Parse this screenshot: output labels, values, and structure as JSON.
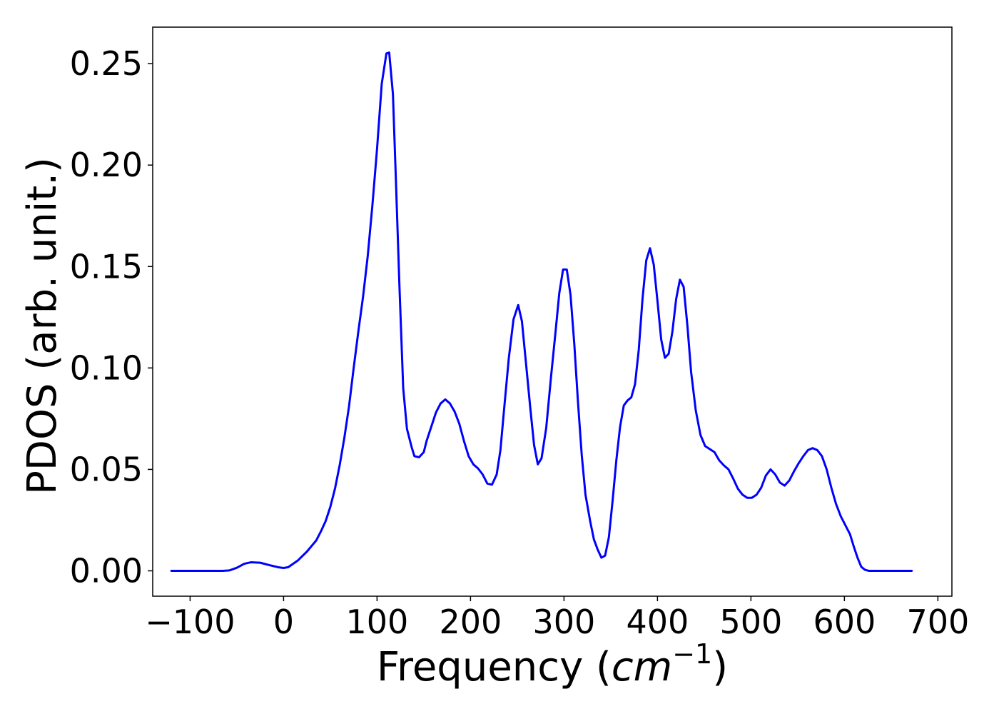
{
  "chart_data": {
    "type": "line",
    "title": "",
    "xlabel": "Frequency ($cm^{-1}$)",
    "xlabel_parts": {
      "main": "Frequency (",
      "math_base": "cm",
      "math_sup": "−1",
      "close": ")"
    },
    "ylabel": "PDOS (arb. unit.)",
    "xlim": [
      -140,
      715
    ],
    "ylim": [
      -0.0125,
      0.268
    ],
    "xticks": [
      -100,
      0,
      100,
      200,
      300,
      400,
      500,
      600,
      700
    ],
    "xtick_labels": [
      "−100",
      "0",
      "100",
      "200",
      "300",
      "400",
      "500",
      "600",
      "700"
    ],
    "yticks": [
      0.0,
      0.05,
      0.1,
      0.15,
      0.2,
      0.25
    ],
    "ytick_labels": [
      "0.00",
      "0.05",
      "0.10",
      "0.15",
      "0.20",
      "0.25"
    ],
    "grid": false,
    "colors": {
      "line": "#0000ff"
    },
    "series": [
      {
        "x": [
          -120,
          -100,
          -80,
          -65,
          -58,
          -50,
          -42,
          -35,
          -25,
          -15,
          -5,
          0,
          5,
          15,
          25,
          35,
          40,
          45,
          50,
          55,
          60,
          65,
          70,
          75,
          80,
          85,
          90,
          95,
          100,
          105,
          110,
          113,
          117,
          120,
          124,
          128,
          132,
          137,
          140,
          145,
          150,
          153,
          158,
          163,
          168,
          173,
          178,
          183,
          188,
          193,
          198,
          203,
          208,
          213,
          218,
          223,
          228,
          232,
          236,
          241,
          246,
          251,
          255,
          259,
          264,
          268,
          272,
          276,
          281,
          286,
          291,
          295,
          299,
          303,
          307,
          311,
          315,
          319,
          323,
          328,
          332,
          336,
          340,
          344,
          348,
          352,
          356,
          360,
          364,
          368,
          372,
          376,
          380,
          384,
          388,
          392,
          396,
          400,
          404,
          408,
          412,
          416,
          420,
          424,
          428,
          432,
          436,
          441,
          446,
          451,
          456,
          461,
          466,
          471,
          476,
          481,
          486,
          491,
          496,
          501,
          506,
          511,
          516,
          521,
          526,
          531,
          536,
          541,
          546,
          551,
          556,
          561,
          566,
          571,
          576,
          581,
          586,
          591,
          596,
          601,
          606,
          610,
          614,
          618,
          622,
          626,
          630,
          640,
          650,
          660,
          672
        ],
        "y": [
          0.0,
          0.0,
          0.0,
          0.0,
          0.0002,
          0.0015,
          0.0035,
          0.0042,
          0.004,
          0.0028,
          0.0017,
          0.0014,
          0.0018,
          0.005,
          0.0095,
          0.015,
          0.0195,
          0.0245,
          0.0315,
          0.0405,
          0.052,
          0.0655,
          0.081,
          0.1,
          0.118,
          0.135,
          0.155,
          0.18,
          0.208,
          0.24,
          0.255,
          0.2555,
          0.235,
          0.195,
          0.14,
          0.09,
          0.07,
          0.061,
          0.0565,
          0.056,
          0.0585,
          0.064,
          0.071,
          0.078,
          0.0825,
          0.0845,
          0.0825,
          0.0785,
          0.0725,
          0.064,
          0.0565,
          0.0525,
          0.0505,
          0.0475,
          0.043,
          0.0425,
          0.0475,
          0.0595,
          0.08,
          0.105,
          0.124,
          0.131,
          0.123,
          0.104,
          0.08,
          0.062,
          0.0525,
          0.0555,
          0.0705,
          0.095,
          0.118,
          0.137,
          0.1485,
          0.1485,
          0.136,
          0.112,
          0.083,
          0.057,
          0.0375,
          0.0245,
          0.0155,
          0.0105,
          0.0065,
          0.0075,
          0.0165,
          0.0345,
          0.0545,
          0.071,
          0.0815,
          0.084,
          0.0855,
          0.092,
          0.109,
          0.134,
          0.153,
          0.159,
          0.151,
          0.133,
          0.114,
          0.105,
          0.107,
          0.118,
          0.134,
          0.1435,
          0.14,
          0.121,
          0.098,
          0.079,
          0.067,
          0.0615,
          0.06,
          0.0585,
          0.0545,
          0.052,
          0.05,
          0.0455,
          0.0405,
          0.0375,
          0.036,
          0.036,
          0.0375,
          0.041,
          0.047,
          0.05,
          0.0475,
          0.0435,
          0.042,
          0.0445,
          0.049,
          0.053,
          0.0565,
          0.0595,
          0.0605,
          0.0595,
          0.0565,
          0.05,
          0.041,
          0.033,
          0.027,
          0.0225,
          0.018,
          0.012,
          0.0065,
          0.002,
          0.0005,
          0.0,
          0.0,
          0.0,
          0.0,
          0.0,
          0.0
        ]
      }
    ]
  }
}
